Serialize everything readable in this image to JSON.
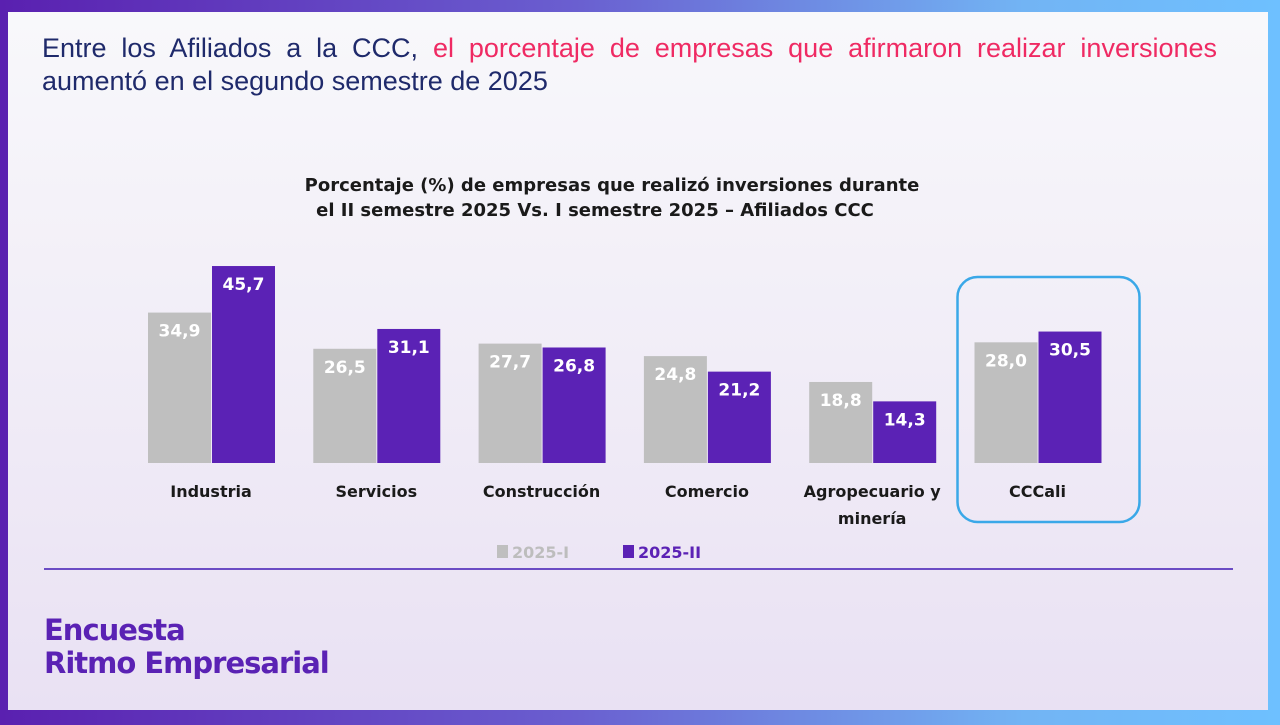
{
  "headline": {
    "part1": "Entre los Afiliados a la CCC, ",
    "highlight": "el porcentaje de empresas que afirmaron realizar inversiones",
    "part2": " aumentó en el segundo semestre de 2025"
  },
  "brand": {
    "line1": "Encuesta",
    "line2": "Ritmo Empresarial"
  },
  "colors": {
    "series1": "#bfbfbf",
    "series2": "#5b22b5",
    "highlight_box": "#3aa8e8",
    "headline": "#1f2a6b",
    "headline_highlight": "#ef2a63"
  },
  "chart_data": {
    "type": "bar",
    "title_line1": "Porcentaje (%) de empresas que realizó inversiones durante",
    "title_line2": "el II semestre 2025 Vs. I semestre 2025  – Afiliados CCC",
    "categories": [
      [
        "Industria"
      ],
      [
        "Servicios"
      ],
      [
        "Construcción"
      ],
      [
        "Comercio"
      ],
      [
        "Agropecuario y",
        "minería"
      ],
      [
        "CCCali"
      ]
    ],
    "series": [
      {
        "name": "2025-I",
        "values": [
          34.9,
          26.5,
          27.7,
          24.8,
          18.8,
          28.0
        ],
        "labels": [
          "34,9",
          "26,5",
          "27,7",
          "24,8",
          "18,8",
          "28,0"
        ]
      },
      {
        "name": "2025-II",
        "values": [
          45.7,
          31.1,
          26.8,
          21.2,
          14.3,
          30.5
        ],
        "labels": [
          "45,7",
          "31,1",
          "26,8",
          "21,2",
          "14,3",
          "30,5"
        ]
      }
    ],
    "highlighted_category": "CCCali",
    "legend_position": "bottom",
    "grid": false,
    "y_axis_visible": false
  }
}
